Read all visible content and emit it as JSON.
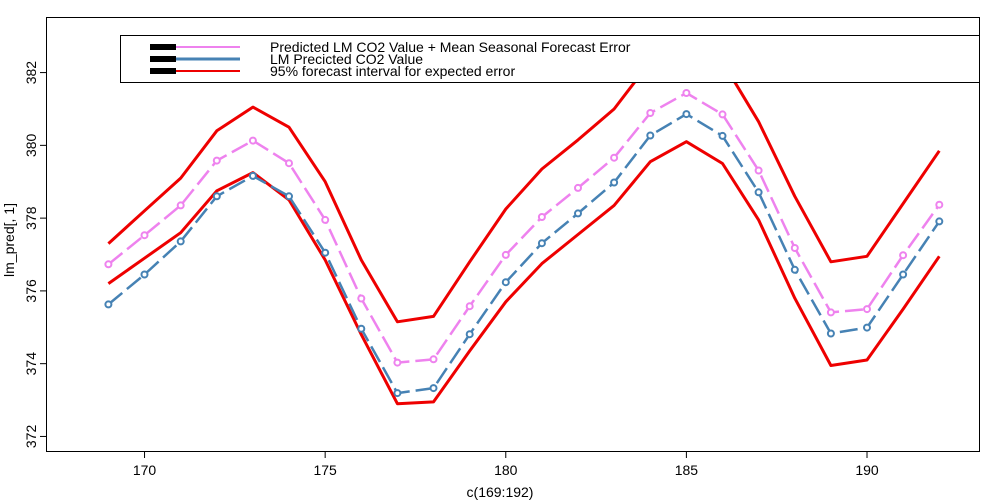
{
  "chart_data": {
    "type": "line",
    "title": "",
    "xlabel": "c(169:192)",
    "ylabel": "lm_pred[, 1]",
    "xlim": [
      167.3,
      193.1
    ],
    "ylim": [
      371.6,
      383.5
    ],
    "xticks": [
      "170",
      "175",
      "180",
      "185",
      "190"
    ],
    "yticks": [
      "372",
      "374",
      "376",
      "378",
      "380",
      "382"
    ],
    "grid": false,
    "legend_position": "top",
    "x": [
      169,
      170,
      171,
      172,
      173,
      174,
      175,
      176,
      177,
      178,
      179,
      180,
      181,
      182,
      183,
      184,
      185,
      186,
      187,
      188,
      189,
      190,
      191,
      192
    ],
    "series": [
      {
        "name": "Predicted LM CO2 Value + Mean Seasonal Forecast Error",
        "color": "#ee82ee",
        "marker": "circle",
        "values": [
          376.73,
          377.53,
          378.35,
          379.58,
          380.13,
          379.51,
          377.95,
          375.79,
          374.03,
          374.12,
          375.58,
          376.99,
          378.03,
          378.83,
          379.66,
          380.89,
          381.44,
          380.85,
          379.31,
          377.18,
          375.41,
          375.5,
          376.98,
          378.37
        ]
      },
      {
        "name": "LM Precicted CO2 Value",
        "color": "#4682b4",
        "marker": "circle",
        "values": [
          375.63,
          376.45,
          377.36,
          378.6,
          379.16,
          378.6,
          377.05,
          374.96,
          373.19,
          373.33,
          374.81,
          376.24,
          377.31,
          378.13,
          378.98,
          380.27,
          380.86,
          380.26,
          378.71,
          376.58,
          374.83,
          374.99,
          376.45,
          377.91
        ]
      },
      {
        "name": "95% forecast interval for expected error",
        "color": "#ee0000",
        "marker": "none",
        "upper": [
          377.3,
          378.2,
          379.1,
          380.4,
          381.05,
          380.5,
          379.0,
          376.85,
          375.15,
          375.3,
          376.8,
          378.25,
          379.35,
          380.15,
          381.0,
          382.3,
          382.9,
          382.3,
          380.65,
          378.6,
          376.8,
          376.95,
          378.4,
          379.85
        ],
        "lower": [
          376.2,
          376.9,
          377.6,
          378.75,
          379.25,
          378.5,
          376.85,
          374.8,
          372.9,
          372.95,
          374.35,
          375.7,
          376.75,
          377.55,
          378.35,
          379.55,
          380.1,
          379.5,
          377.95,
          375.8,
          373.95,
          374.1,
          375.5,
          376.95
        ]
      }
    ]
  }
}
